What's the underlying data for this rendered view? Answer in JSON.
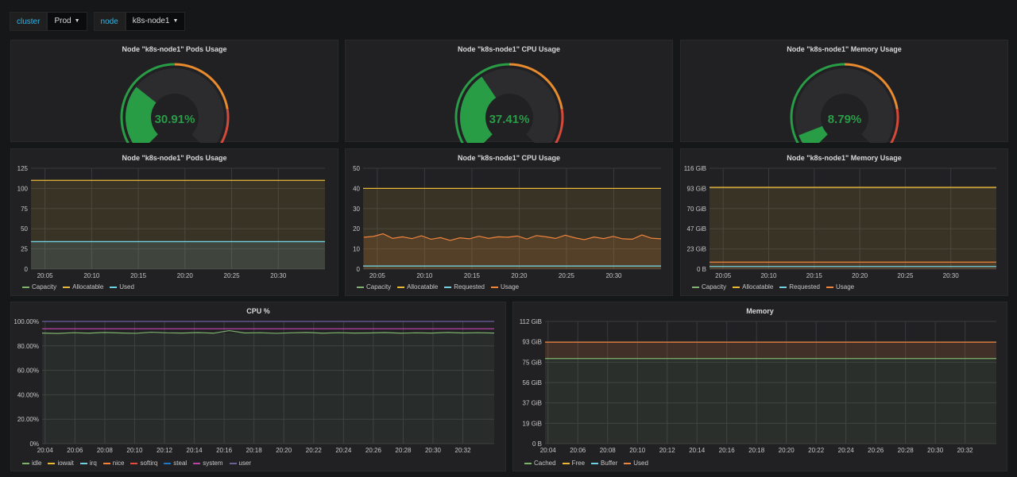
{
  "variables": [
    {
      "label": "cluster",
      "value": "Prod"
    },
    {
      "label": "node",
      "value": "k8s-node1"
    }
  ],
  "gauges": [
    {
      "title": "Node \"k8s-node1\" Pods Usage",
      "value_text": "30.91%",
      "value": 30.91
    },
    {
      "title": "Node \"k8s-node1\" CPU Usage",
      "value_text": "37.41%",
      "value": 37.41
    },
    {
      "title": "Node \"k8s-node1\" Memory Usage",
      "value_text": "8.79%",
      "value": 8.79
    }
  ],
  "colors": {
    "green": "#299c46",
    "orange": "#e88b2e",
    "red": "#d44a3a",
    "capacity": "#7eb26d",
    "allocatable": "#eab839",
    "requested": "#6ed0e0",
    "usage": "#ef843c",
    "used": "#6ed0e0",
    "idle": "#7eb26d",
    "iowait": "#eab839",
    "irq": "#6ed0e0",
    "nice": "#ef843c",
    "softirq": "#e24d42",
    "steal": "#1f78c1",
    "system": "#ba43a9",
    "user": "#705da0",
    "cached": "#7eb26d",
    "free": "#eab839",
    "buffer": "#6ed0e0",
    "mem_used": "#ef843c"
  },
  "charts": {
    "pods": {
      "title": "Node \"k8s-node1\" Pods Usage",
      "y_ticks": [
        "125",
        "100",
        "75",
        "50",
        "25",
        "0"
      ],
      "x_ticks": [
        "20:05",
        "20:10",
        "20:15",
        "20:20",
        "20:25",
        "20:30"
      ],
      "legend": [
        "Capacity",
        "Allocatable",
        "Used"
      ]
    },
    "cpu": {
      "title": "Node \"k8s-node1\" CPU Usage",
      "y_ticks": [
        "50",
        "40",
        "30",
        "20",
        "10",
        "0"
      ],
      "x_ticks": [
        "20:05",
        "20:10",
        "20:15",
        "20:20",
        "20:25",
        "20:30"
      ],
      "legend": [
        "Capacity",
        "Allocatable",
        "Requested",
        "Usage"
      ]
    },
    "mem": {
      "title": "Node \"k8s-node1\" Memory Usage",
      "y_ticks": [
        "116 GiB",
        "93 GiB",
        "70 GiB",
        "47 GiB",
        "23 GiB",
        "0 B"
      ],
      "x_ticks": [
        "20:05",
        "20:10",
        "20:15",
        "20:20",
        "20:25",
        "20:30"
      ],
      "legend": [
        "Capacity",
        "Allocatable",
        "Requested",
        "Usage"
      ]
    },
    "cpupct": {
      "title": "CPU %",
      "y_ticks": [
        "100.00%",
        "80.00%",
        "60.00%",
        "40.00%",
        "20.00%",
        "0%"
      ],
      "x_ticks": [
        "20:04",
        "20:06",
        "20:08",
        "20:10",
        "20:12",
        "20:14",
        "20:16",
        "20:18",
        "20:20",
        "20:22",
        "20:24",
        "20:26",
        "20:28",
        "20:30",
        "20:32"
      ],
      "legend": [
        "idle",
        "iowait",
        "irq",
        "nice",
        "softirq",
        "steal",
        "system",
        "user"
      ]
    },
    "memory": {
      "title": "Memory",
      "y_ticks": [
        "112 GiB",
        "93 GiB",
        "75 GiB",
        "56 GiB",
        "37 GiB",
        "19 GiB",
        "0 B"
      ],
      "x_ticks": [
        "20:04",
        "20:06",
        "20:08",
        "20:10",
        "20:12",
        "20:14",
        "20:16",
        "20:18",
        "20:20",
        "20:22",
        "20:24",
        "20:26",
        "20:28",
        "20:30",
        "20:32"
      ],
      "legend": [
        "Cached",
        "Free",
        "Buffer",
        "Used"
      ]
    }
  },
  "chart_data": [
    {
      "type": "line",
      "title": "Node \"k8s-node1\" Pods Usage",
      "ylim": [
        0,
        125
      ],
      "series": [
        {
          "name": "Capacity",
          "values": [
            110
          ]
        },
        {
          "name": "Allocatable",
          "values": [
            110
          ]
        },
        {
          "name": "Used",
          "values": [
            34
          ]
        }
      ]
    },
    {
      "type": "line",
      "title": "Node \"k8s-node1\" CPU Usage",
      "ylim": [
        0,
        50
      ],
      "series": [
        {
          "name": "Capacity",
          "values": [
            40
          ]
        },
        {
          "name": "Allocatable",
          "values": [
            40
          ]
        },
        {
          "name": "Requested",
          "values": [
            1.5
          ]
        },
        {
          "name": "Usage",
          "values": [
            15.8,
            16.2,
            17.5,
            15.2,
            16.0,
            15.1,
            16.5,
            14.8,
            15.6,
            14.2,
            15.5,
            15.0,
            16.3,
            15.2,
            16.0,
            15.8,
            16.4,
            14.9,
            16.6,
            16.0,
            15.2,
            16.8,
            15.5,
            14.6,
            15.9,
            15.1,
            16.2,
            15.0,
            14.8,
            16.9,
            15.3,
            15.0
          ]
        }
      ]
    },
    {
      "type": "line",
      "title": "Node \"k8s-node1\" Memory Usage",
      "ylim": [
        0,
        116
      ],
      "series": [
        {
          "name": "Capacity",
          "values": [
            94
          ]
        },
        {
          "name": "Allocatable",
          "values": [
            94
          ]
        },
        {
          "name": "Requested",
          "values": [
            3
          ]
        },
        {
          "name": "Usage",
          "values": [
            8
          ]
        }
      ]
    },
    {
      "type": "area",
      "title": "CPU %",
      "ylim": [
        0,
        100
      ],
      "series": [
        {
          "name": "idle",
          "values": [
            90.5,
            90.2,
            90.8,
            90.4,
            91.0,
            90.6,
            90.3,
            91.2,
            90.7,
            90.5,
            90.9,
            90.4,
            92.5,
            90.6,
            90.8,
            90.3,
            90.7,
            91.0,
            90.4,
            90.8,
            90.5,
            90.6,
            90.9,
            90.4,
            90.7,
            90.5,
            91.0,
            90.6,
            90.8,
            90.5
          ]
        },
        {
          "name": "system",
          "values": [
            94
          ]
        },
        {
          "name": "user",
          "values": [
            100
          ]
        }
      ]
    },
    {
      "type": "area",
      "title": "Memory",
      "ylim": [
        0,
        112
      ],
      "series": [
        {
          "name": "Cached",
          "values": [
            78
          ]
        },
        {
          "name": "Free",
          "values": [
            93
          ]
        },
        {
          "name": "Buffer",
          "values": [
            78
          ]
        },
        {
          "name": "Used",
          "values": [
            93
          ]
        }
      ]
    }
  ]
}
